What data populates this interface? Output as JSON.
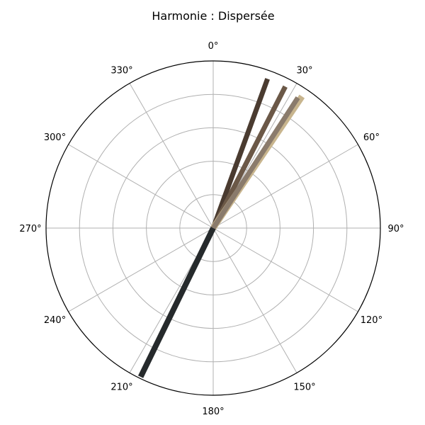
{
  "chart_data": {
    "type": "polar-line",
    "title": "Harmonie : Dispersée",
    "theta_direction": "clockwise",
    "theta_zero": "top",
    "theta_ticks": [
      "0°",
      "30°",
      "60°",
      "90°",
      "120°",
      "150°",
      "180°",
      "210°",
      "240°",
      "270°",
      "300°",
      "330°"
    ],
    "r_range": [
      0,
      1
    ],
    "r_gridlines": [
      0.2,
      0.4,
      0.6,
      0.8,
      1.0
    ],
    "r_tick_labels": [],
    "grid": true,
    "series": [
      {
        "angle": 20,
        "r": 0.95,
        "color": "#4a3b30"
      },
      {
        "angle": 27,
        "r": 0.95,
        "color": "#6b5847"
      },
      {
        "angle": 34,
        "r": 0.95,
        "color": "#c8b58e"
      },
      {
        "angle": 33,
        "r": 0.93,
        "color": "#8a7b6c"
      },
      {
        "angle": 206,
        "r": 0.99,
        "color": "#262a2c"
      }
    ]
  }
}
